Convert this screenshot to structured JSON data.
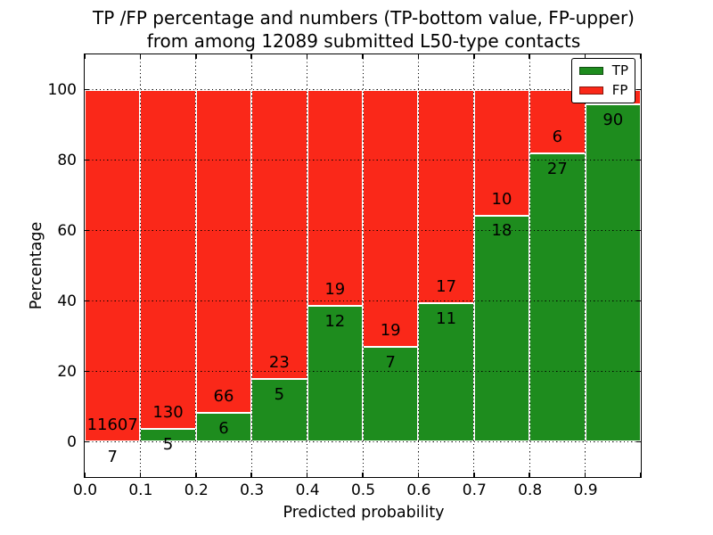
{
  "title": {
    "line1": "TP /FP percentage and numbers (TP-bottom value, FP-upper)",
    "line2": "from among 12089 submitted L50-type contacts"
  },
  "axes": {
    "xlabel": "Predicted probability",
    "ylabel": "Percentage",
    "xtick_labels": [
      "0.0",
      "0.1",
      "0.2",
      "0.3",
      "0.4",
      "0.5",
      "0.6",
      "0.7",
      "0.8",
      "0.9"
    ],
    "xtick_values": [
      0.0,
      0.1,
      0.2,
      0.3,
      0.4,
      0.5,
      0.6,
      0.7,
      0.8,
      0.9
    ],
    "ytick_labels": [
      "0",
      "20",
      "40",
      "60",
      "80",
      "100"
    ],
    "ytick_values": [
      0,
      20,
      40,
      60,
      80,
      100
    ]
  },
  "legend": {
    "entries": [
      {
        "label": "TP",
        "color": "#1e8c1e"
      },
      {
        "label": "FP",
        "color": "#fa2819"
      }
    ]
  },
  "colors": {
    "tp_green": "#1e8c1e",
    "fp_red": "#fa2819",
    "bar_edge": "#ffffff",
    "grid": "#000000",
    "text": "#000000",
    "background": "#ffffff"
  },
  "chart_data": {
    "type": "bar",
    "stacked": true,
    "normalized_to_percent": true,
    "title": "TP /FP percentage and numbers (TP-bottom value, FP-upper) from among 12089 submitted L50-type contacts",
    "total_submitted": 12089,
    "contact_type": "L50",
    "xlabel": "Predicted probability",
    "ylabel": "Percentage",
    "xlim": [
      0.0,
      1.0
    ],
    "ylim": [
      -10,
      110
    ],
    "bin_width": 0.1,
    "grid": true,
    "legend_position": "upper right",
    "series": [
      {
        "name": "TP",
        "color": "#1e8c1e",
        "position": "bottom"
      },
      {
        "name": "FP",
        "color": "#fa2819",
        "position": "top"
      }
    ],
    "bins": [
      {
        "x_start": 0.0,
        "x_end": 0.1,
        "tp_count": 7,
        "fp_count": 11607,
        "tp_percent": 0.06
      },
      {
        "x_start": 0.1,
        "x_end": 0.2,
        "tp_count": 5,
        "fp_count": 130,
        "tp_percent": 3.7
      },
      {
        "x_start": 0.2,
        "x_end": 0.3,
        "tp_count": 6,
        "fp_count": 66,
        "tp_percent": 8.33
      },
      {
        "x_start": 0.3,
        "x_end": 0.4,
        "tp_count": 5,
        "fp_count": 23,
        "tp_percent": 17.86
      },
      {
        "x_start": 0.4,
        "x_end": 0.5,
        "tp_count": 12,
        "fp_count": 19,
        "tp_percent": 38.71
      },
      {
        "x_start": 0.5,
        "x_end": 0.6,
        "tp_count": 7,
        "fp_count": 19,
        "tp_percent": 26.92
      },
      {
        "x_start": 0.6,
        "x_end": 0.7,
        "tp_count": 11,
        "fp_count": 17,
        "tp_percent": 39.29
      },
      {
        "x_start": 0.7,
        "x_end": 0.8,
        "tp_count": 18,
        "fp_count": 10,
        "tp_percent": 64.29
      },
      {
        "x_start": 0.8,
        "x_end": 0.9,
        "tp_count": 27,
        "fp_count": 6,
        "tp_percent": 81.82
      },
      {
        "x_start": 0.9,
        "x_end": 1.0,
        "tp_count": 90,
        "fp_count": null,
        "tp_percent": 95.7
      }
    ]
  }
}
